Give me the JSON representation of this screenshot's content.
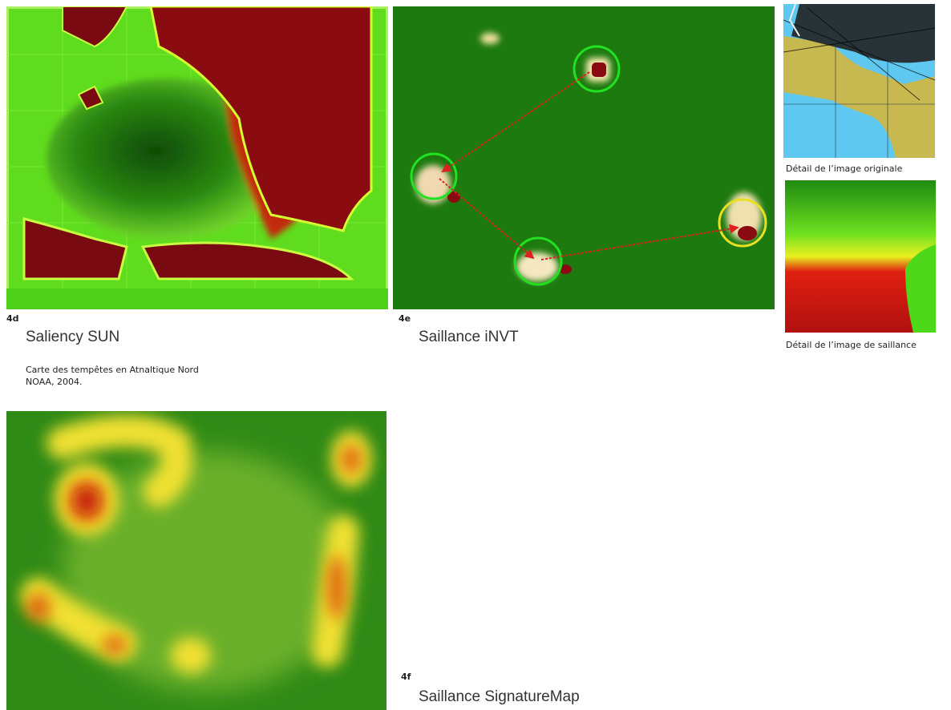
{
  "panels": [
    {
      "id": "4d",
      "title": "Saliency SUN",
      "caption": [
        "Carte des tempêtes en Atnaltique Nord",
        "NOAA, 2004."
      ]
    },
    {
      "id": "4e",
      "title": "Saillance iNVT",
      "details": [
        "Détail de l’image originale",
        "Détail de l’image de saillance"
      ]
    },
    {
      "id": "4f",
      "title": "Saillance SignatureMap"
    }
  ]
}
